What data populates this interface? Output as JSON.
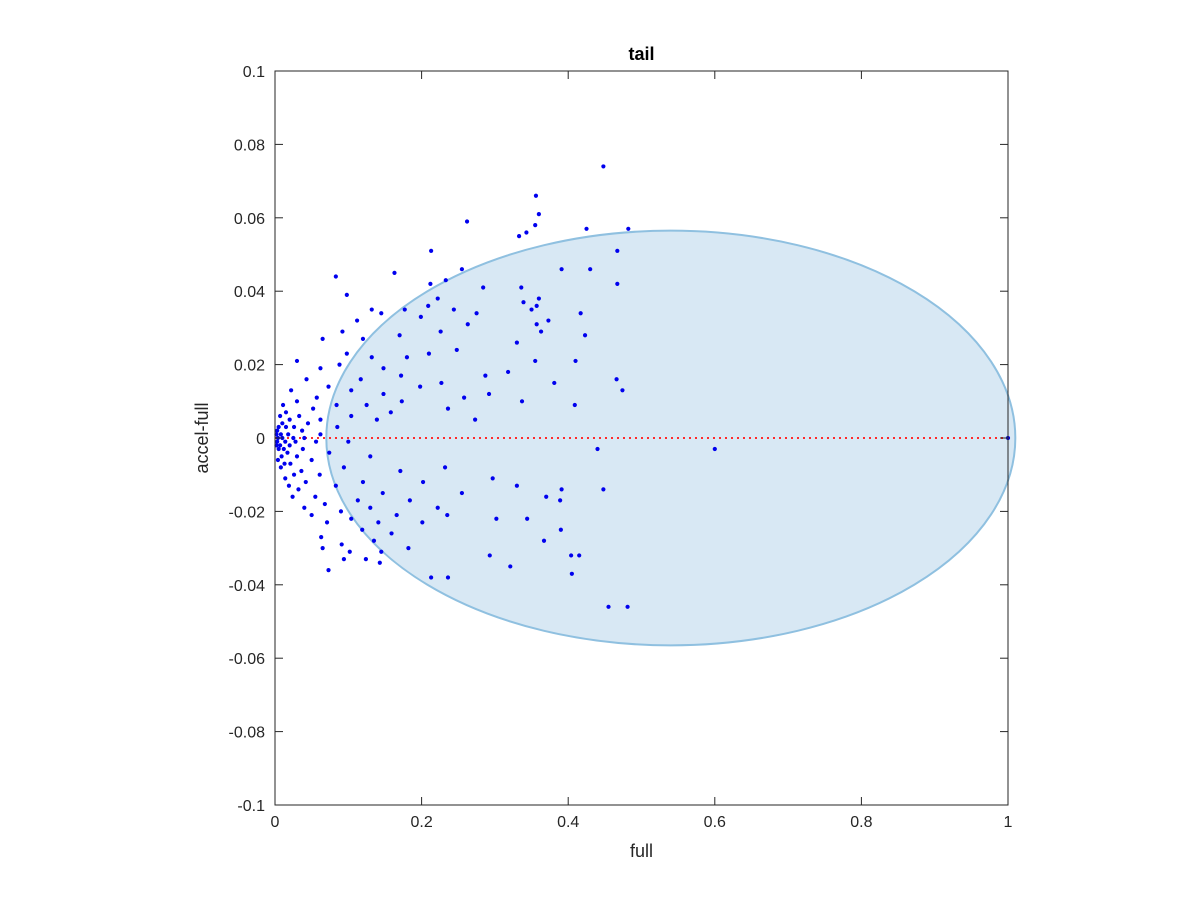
{
  "chart_data": {
    "type": "scatter",
    "title": "tail",
    "xlabel": "full",
    "ylabel": "accel-full",
    "xlim": [
      0,
      1
    ],
    "ylim": [
      -0.1,
      0.1
    ],
    "xticks": [
      0,
      0.2,
      0.4,
      0.6,
      0.8,
      1
    ],
    "xtick_labels": [
      "0",
      "0.2",
      "0.4",
      "0.6",
      "0.8",
      "1"
    ],
    "yticks": [
      -0.1,
      -0.08,
      -0.06,
      -0.04,
      -0.02,
      0,
      0.02,
      0.04,
      0.06,
      0.08,
      0.1
    ],
    "ytick_labels": [
      "-0.1",
      "-0.08",
      "-0.06",
      "-0.04",
      "-0.02",
      "0",
      "0.02",
      "0.04",
      "0.06",
      "0.08",
      "0.1"
    ],
    "grid": false,
    "colors": {
      "points": "#0000ee",
      "ellipse_fill": "#d8e8f4",
      "ellipse_edge": "#8fc0e0",
      "reference_line": "#ff2b2b"
    },
    "ellipse": {
      "center": [
        0.54,
        0.0
      ],
      "semi_axes": [
        0.47,
        0.0565
      ]
    },
    "reference_line": {
      "y": 0,
      "x": [
        0,
        1
      ],
      "style": "dotted"
    },
    "points": [
      [
        0.448,
        0.074
      ],
      [
        0.356,
        0.066
      ],
      [
        0.36,
        0.061
      ],
      [
        0.262,
        0.059
      ],
      [
        0.355,
        0.058
      ],
      [
        0.425,
        0.057
      ],
      [
        0.482,
        0.057
      ],
      [
        0.343,
        0.056
      ],
      [
        0.333,
        0.055
      ],
      [
        0.213,
        0.051
      ],
      [
        0.467,
        0.051
      ],
      [
        0.391,
        0.046
      ],
      [
        0.43,
        0.046
      ],
      [
        0.255,
        0.046
      ],
      [
        0.163,
        0.045
      ],
      [
        0.083,
        0.044
      ],
      [
        0.233,
        0.043
      ],
      [
        0.467,
        0.042
      ],
      [
        0.212,
        0.042
      ],
      [
        0.336,
        0.041
      ],
      [
        0.284,
        0.041
      ],
      [
        0.098,
        0.039
      ],
      [
        0.222,
        0.038
      ],
      [
        0.36,
        0.038
      ],
      [
        0.339,
        0.037
      ],
      [
        0.209,
        0.036
      ],
      [
        0.357,
        0.036
      ],
      [
        0.35,
        0.035
      ],
      [
        0.177,
        0.035
      ],
      [
        0.132,
        0.035
      ],
      [
        0.244,
        0.035
      ],
      [
        0.417,
        0.034
      ],
      [
        0.275,
        0.034
      ],
      [
        0.145,
        0.034
      ],
      [
        0.199,
        0.033
      ],
      [
        0.373,
        0.032
      ],
      [
        0.112,
        0.032
      ],
      [
        0.357,
        0.031
      ],
      [
        0.263,
        0.031
      ],
      [
        0.363,
        0.029
      ],
      [
        0.226,
        0.029
      ],
      [
        0.092,
        0.029
      ],
      [
        0.17,
        0.028
      ],
      [
        0.423,
        0.028
      ],
      [
        0.12,
        0.027
      ],
      [
        0.065,
        0.027
      ],
      [
        0.33,
        0.026
      ],
      [
        0.248,
        0.024
      ],
      [
        0.098,
        0.023
      ],
      [
        0.21,
        0.023
      ],
      [
        0.18,
        0.022
      ],
      [
        0.132,
        0.022
      ],
      [
        0.355,
        0.021
      ],
      [
        0.41,
        0.021
      ],
      [
        0.03,
        0.021
      ],
      [
        0.088,
        0.02
      ],
      [
        0.062,
        0.019
      ],
      [
        0.148,
        0.019
      ],
      [
        0.318,
        0.018
      ],
      [
        0.287,
        0.017
      ],
      [
        0.172,
        0.017
      ],
      [
        0.117,
        0.016
      ],
      [
        0.043,
        0.016
      ],
      [
        0.466,
        0.016
      ],
      [
        0.227,
        0.015
      ],
      [
        0.381,
        0.015
      ],
      [
        0.198,
        0.014
      ],
      [
        0.073,
        0.014
      ],
      [
        0.104,
        0.013
      ],
      [
        0.474,
        0.013
      ],
      [
        0.022,
        0.013
      ],
      [
        0.148,
        0.012
      ],
      [
        0.292,
        0.012
      ],
      [
        0.258,
        0.011
      ],
      [
        0.057,
        0.011
      ],
      [
        0.337,
        0.01
      ],
      [
        0.173,
        0.01
      ],
      [
        0.03,
        0.01
      ],
      [
        0.409,
        0.009
      ],
      [
        0.084,
        0.009
      ],
      [
        0.125,
        0.009
      ],
      [
        0.011,
        0.009
      ],
      [
        0.052,
        0.008
      ],
      [
        0.236,
        0.008
      ],
      [
        0.015,
        0.007
      ],
      [
        0.158,
        0.007
      ],
      [
        0.033,
        0.006
      ],
      [
        0.104,
        0.006
      ],
      [
        0.007,
        0.006
      ],
      [
        0.062,
        0.005
      ],
      [
        0.273,
        0.005
      ],
      [
        0.02,
        0.005
      ],
      [
        0.139,
        0.005
      ],
      [
        0.01,
        0.004
      ],
      [
        0.045,
        0.004
      ],
      [
        0.005,
        0.003
      ],
      [
        0.085,
        0.003
      ],
      [
        0.026,
        0.003
      ],
      [
        0.015,
        0.003
      ],
      [
        0.003,
        0.002
      ],
      [
        0.037,
        0.002
      ],
      [
        0.018,
        0.001
      ],
      [
        0.008,
        0.001
      ],
      [
        0.062,
        0.001
      ],
      [
        0.002,
        0.001
      ],
      [
        0.025,
        0.0
      ],
      [
        0.01,
        0.0
      ],
      [
        0.004,
        0.0
      ],
      [
        0.04,
        0.0
      ],
      [
        0.014,
        -0.001
      ],
      [
        0.003,
        -0.001
      ],
      [
        0.028,
        -0.001
      ],
      [
        0.056,
        -0.001
      ],
      [
        0.1,
        -0.001
      ],
      [
        0.007,
        -0.002
      ],
      [
        0.02,
        -0.002
      ],
      [
        0.002,
        -0.002
      ],
      [
        0.012,
        -0.003
      ],
      [
        0.038,
        -0.003
      ],
      [
        0.005,
        -0.003
      ],
      [
        0.074,
        -0.004
      ],
      [
        0.017,
        -0.004
      ],
      [
        0.009,
        -0.005
      ],
      [
        0.03,
        -0.005
      ],
      [
        0.13,
        -0.005
      ],
      [
        0.004,
        -0.006
      ],
      [
        0.05,
        -0.006
      ],
      [
        0.021,
        -0.007
      ],
      [
        0.013,
        -0.007
      ],
      [
        0.232,
        -0.008
      ],
      [
        0.094,
        -0.008
      ],
      [
        0.008,
        -0.008
      ],
      [
        0.036,
        -0.009
      ],
      [
        0.6,
        -0.003
      ],
      [
        0.44,
        -0.003
      ],
      [
        0.171,
        -0.009
      ],
      [
        0.026,
        -0.01
      ],
      [
        0.061,
        -0.01
      ],
      [
        0.014,
        -0.011
      ],
      [
        0.297,
        -0.011
      ],
      [
        0.12,
        -0.012
      ],
      [
        0.042,
        -0.012
      ],
      [
        0.202,
        -0.012
      ],
      [
        0.019,
        -0.013
      ],
      [
        0.083,
        -0.013
      ],
      [
        0.33,
        -0.013
      ],
      [
        0.391,
        -0.014
      ],
      [
        0.032,
        -0.014
      ],
      [
        0.147,
        -0.015
      ],
      [
        0.255,
        -0.015
      ],
      [
        0.055,
        -0.016
      ],
      [
        0.37,
        -0.016
      ],
      [
        0.024,
        -0.016
      ],
      [
        0.113,
        -0.017
      ],
      [
        0.184,
        -0.017
      ],
      [
        0.389,
        -0.017
      ],
      [
        0.068,
        -0.018
      ],
      [
        0.04,
        -0.019
      ],
      [
        0.222,
        -0.019
      ],
      [
        0.448,
        -0.014
      ],
      [
        0.13,
        -0.019
      ],
      [
        0.09,
        -0.02
      ],
      [
        0.05,
        -0.021
      ],
      [
        0.166,
        -0.021
      ],
      [
        0.235,
        -0.021
      ],
      [
        0.104,
        -0.022
      ],
      [
        0.302,
        -0.022
      ],
      [
        0.344,
        -0.022
      ],
      [
        0.071,
        -0.023
      ],
      [
        0.141,
        -0.023
      ],
      [
        0.201,
        -0.023
      ],
      [
        0.119,
        -0.025
      ],
      [
        0.39,
        -0.025
      ],
      [
        0.159,
        -0.026
      ],
      [
        0.063,
        -0.027
      ],
      [
        0.135,
        -0.028
      ],
      [
        0.367,
        -0.028
      ],
      [
        0.091,
        -0.029
      ],
      [
        0.182,
        -0.03
      ],
      [
        0.293,
        -0.032
      ],
      [
        0.065,
        -0.03
      ],
      [
        0.102,
        -0.031
      ],
      [
        0.145,
        -0.031
      ],
      [
        0.404,
        -0.032
      ],
      [
        0.415,
        -0.032
      ],
      [
        0.073,
        -0.036
      ],
      [
        0.124,
        -0.033
      ],
      [
        0.321,
        -0.035
      ],
      [
        0.094,
        -0.033
      ],
      [
        0.143,
        -0.034
      ],
      [
        0.213,
        -0.038
      ],
      [
        0.236,
        -0.038
      ],
      [
        0.405,
        -0.037
      ],
      [
        0.455,
        -0.046
      ],
      [
        0.481,
        -0.046
      ],
      [
        1.0,
        0.0
      ]
    ]
  }
}
